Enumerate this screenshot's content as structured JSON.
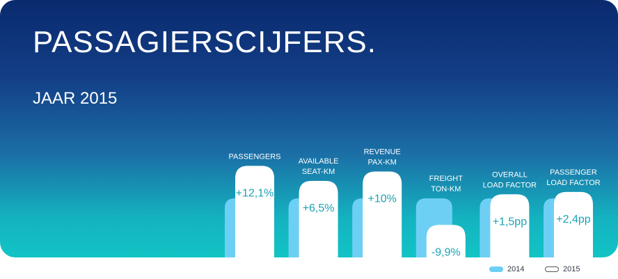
{
  "header": {
    "title": "PASSAGIERSCIJFERS.",
    "subtitle": "JAAR 2015"
  },
  "colors": {
    "bar_2014": "#6ecff4",
    "bar_2015": "#ffffff",
    "value_text": "#1aa3b4",
    "label_text": "#ffffff"
  },
  "chart_data": {
    "type": "bar",
    "title": "PASSAGIERSCIJFERS.",
    "subtitle": "JAAR 2015",
    "categories": [
      [
        "PASSENGERS"
      ],
      [
        "AVAILABLE",
        "SEAT-KM"
      ],
      [
        "REVENUE",
        "PAX-KM"
      ],
      [
        "FREIGHT",
        "TON-KM"
      ],
      [
        "OVERALL",
        "LOAD FACTOR"
      ],
      [
        "PASSENGER",
        "LOAD FACTOR"
      ]
    ],
    "series": [
      {
        "name": "2014",
        "values": [
          100,
          100,
          100,
          100,
          100,
          100
        ]
      },
      {
        "name": "2015",
        "values": [
          112.1,
          106.5,
          110,
          90.1,
          101.5,
          102.4
        ]
      }
    ],
    "labels": [
      "+12,1%",
      "+6,5%",
      "+10%",
      "-9,9%",
      "+1,5pp",
      "+2,4pp"
    ],
    "legend": [
      "2014",
      "2015"
    ],
    "legend_position": "bottom-right"
  }
}
